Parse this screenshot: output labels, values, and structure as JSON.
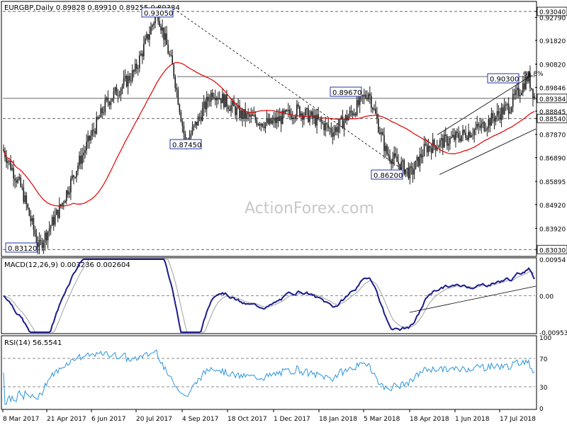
{
  "header": {
    "symbol_line": "EURGBP,Daily  0.89828 0.89910 0.89255 0.89384"
  },
  "watermark": "ActionForex.com",
  "colors": {
    "candle": "#1a1a1a",
    "ma": "#e00000",
    "macd": "#1c1c8c",
    "signal": "#a0a0a0",
    "rsi": "#2a96dc",
    "trend": "#000000",
    "grid": "#8a8a8a",
    "callout_border": "#2233aa"
  },
  "chart_data": [
    {
      "type": "candlestick",
      "title": "EURGBP,Daily  0.89828 0.89910 0.89255 0.89384",
      "y_ticks": [
        "0.93040",
        "0.92790",
        "0.91820",
        "0.90820",
        "0.89846",
        "0.89384",
        "0.88845",
        "0.88540",
        "0.87870",
        "0.86890",
        "0.85895",
        "0.84920",
        "0.83920",
        "0.83030"
      ],
      "x_ticks": [
        "8 Mar 2017",
        "21 Apr 2017",
        "6 Jun 2017",
        "20 Jul 2017",
        "4 Sep 2017",
        "18 Oct 2017",
        "1 Dec 2017",
        "18 Jan 2018",
        "5 Mar 2018",
        "18 Apr 2018",
        "1 Jun 2018",
        "17 Jul 2018"
      ],
      "ylim": [
        0.828,
        0.934
      ],
      "last_close": 0.89384,
      "annotations": [
        {
          "label": "0.93050",
          "value": 0.9305,
          "date": "2017-08-29"
        },
        {
          "label": "0.87450",
          "value": 0.8745,
          "date": "2017-09-11"
        },
        {
          "label": "0.89670",
          "value": 0.8967,
          "date": "2018-03-05"
        },
        {
          "label": "0.86200",
          "value": 0.862,
          "date": "2018-04-17"
        },
        {
          "label": "0.90300",
          "value": 0.903,
          "date": "2018-08-01"
        },
        {
          "label": "0.83120",
          "value": 0.8312,
          "date": "2017-04-20"
        }
      ],
      "fib_label": "61.8%",
      "horizontal_levels": [
        0.9304,
        0.903,
        0.89384,
        0.8854,
        0.8303
      ]
    },
    {
      "type": "line",
      "title": "MACD(12,26,9) 0.003236 0.002604",
      "y_ticks": [
        "0.00954",
        "0.00",
        "-0.00953"
      ],
      "ylim": [
        -0.00953,
        0.00954
      ]
    },
    {
      "type": "line",
      "title": "RSI(14) 56.5541",
      "y_ticks": [
        "100",
        "70",
        "30",
        "0"
      ],
      "ylim": [
        0,
        100
      ],
      "levels": [
        70,
        30
      ]
    }
  ]
}
